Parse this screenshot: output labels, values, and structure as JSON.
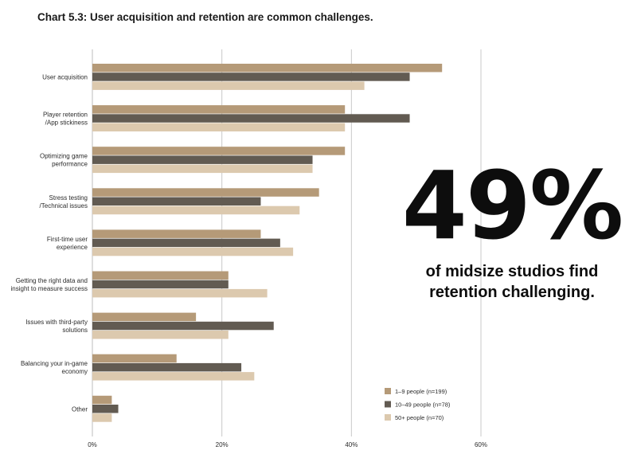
{
  "chart_data": {
    "type": "bar",
    "orientation": "horizontal",
    "title": "Chart 5.3: User acquisition and retention are common challenges.",
    "categories": [
      [
        "User acquisition"
      ],
      [
        "Player retention",
        "/App stickiness"
      ],
      [
        "Optimizing game",
        "performance"
      ],
      [
        "Stress testing",
        "/Technical issues"
      ],
      [
        "First-time user",
        "experience"
      ],
      [
        "Getting the right data and",
        "insight to measure success"
      ],
      [
        "Issues with third-party",
        "solutions"
      ],
      [
        "Balancing your in-game",
        "economy"
      ],
      [
        "Other"
      ]
    ],
    "series": [
      {
        "name": "1–9 people (n=199)",
        "color": "#b59a78",
        "values": [
          54,
          39,
          39,
          35,
          26,
          21,
          16,
          13,
          3
        ]
      },
      {
        "name": "10–49 people (n=78)",
        "color": "#625b52",
        "values": [
          49,
          49,
          34,
          26,
          29,
          21,
          28,
          23,
          4
        ]
      },
      {
        "name": "50+ people (n=70)",
        "color": "#dcc9ae",
        "values": [
          42,
          39,
          34,
          32,
          31,
          27,
          21,
          25,
          3
        ]
      }
    ],
    "xlim": [
      0,
      60
    ],
    "xticks": [
      "0%",
      "20%",
      "40%",
      "60%"
    ],
    "grid": true,
    "legend_position": "bottom-right"
  },
  "callout": {
    "number": "49%",
    "text_line1": "of midsize studios find",
    "text_line2": "retention challenging."
  }
}
